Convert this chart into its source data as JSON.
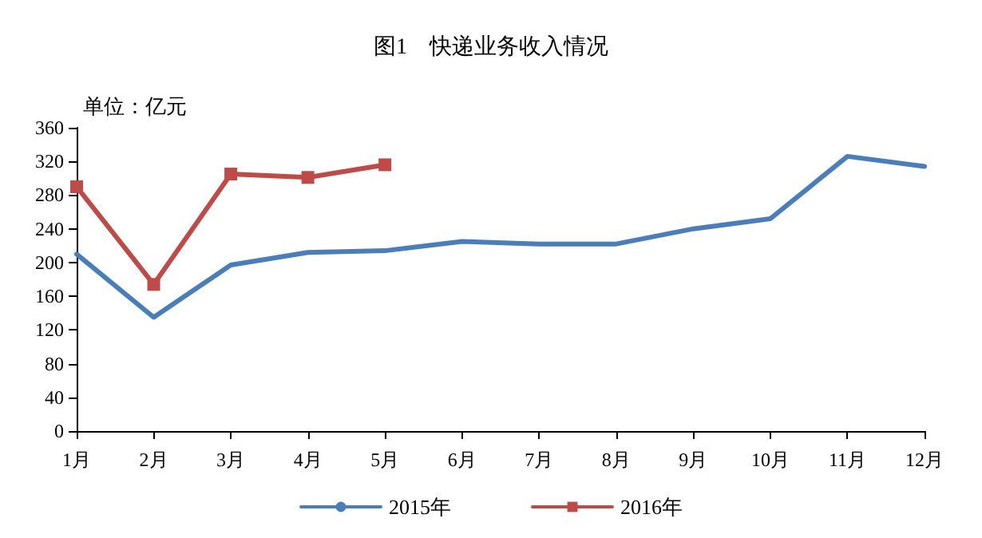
{
  "chart_data": {
    "type": "line",
    "title": "图1　快递业务收入情况",
    "annotations": [
      "单位：亿元"
    ],
    "categories": [
      "1月",
      "2月",
      "3月",
      "4月",
      "5月",
      "6月",
      "7月",
      "8月",
      "9月",
      "10月",
      "11月",
      "12月"
    ],
    "series": [
      {
        "name": "2015年",
        "color": "#4a7ebb",
        "marker": "none",
        "values": [
          210,
          135,
          197,
          212,
          214,
          225,
          222,
          222,
          240,
          252,
          326,
          314
        ]
      },
      {
        "name": "2016年",
        "color": "#be4b48",
        "marker": "square",
        "values": [
          290,
          174,
          305,
          301,
          316,
          null,
          null,
          null,
          null,
          null,
          null,
          null
        ]
      }
    ],
    "ylim": [
      0,
      360
    ],
    "yticks": [
      0,
      40,
      80,
      120,
      160,
      200,
      240,
      280,
      320,
      360
    ],
    "grid": false,
    "legend": "bottom",
    "line_style": "solid"
  }
}
